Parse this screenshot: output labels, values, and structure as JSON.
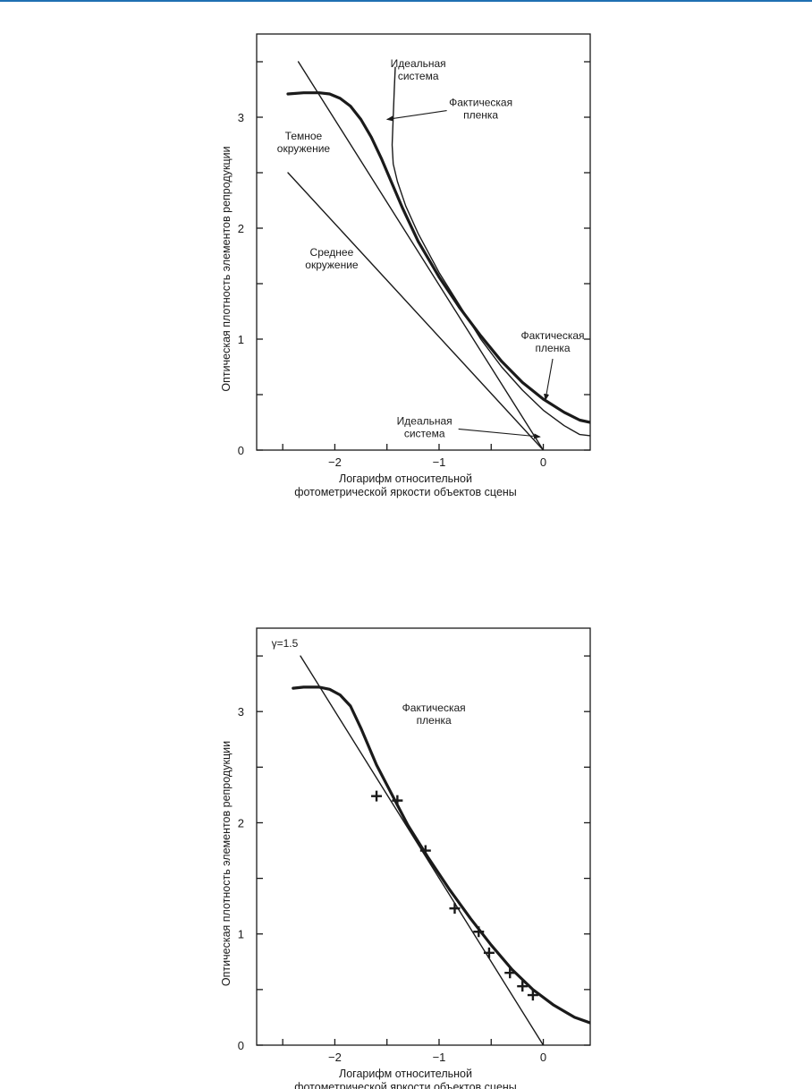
{
  "accent_color": "#1f6fb2",
  "chart_data": [
    {
      "type": "line",
      "xlabel": [
        "Логарифм относительной",
        "фотометрической яркости объектов сцены"
      ],
      "ylabel": "Оптическая плотность элементов репродукции",
      "xlim": [
        -2.75,
        0.45
      ],
      "ylim": [
        0,
        3.75
      ],
      "x_ticks": [
        -2.5,
        -2,
        -1.5,
        -1,
        -0.5,
        0
      ],
      "x_tick_labels": [
        "−2",
        "−1",
        "0"
      ],
      "x_tick_label_values": [
        -2,
        -1,
        0
      ],
      "y_ticks": [
        0,
        0.5,
        1,
        1.5,
        2,
        2.5,
        3,
        3.5
      ],
      "y_tick_labels": [
        "0",
        "1",
        "2",
        "3"
      ],
      "y_tick_label_values": [
        0,
        1,
        2,
        3
      ],
      "grid": false,
      "series": [
        {
          "name": "Фактическая пленка",
          "weight": "heavy",
          "x": [
            -2.45,
            -2.3,
            -2.15,
            -2.05,
            -1.95,
            -1.85,
            -1.75,
            -1.65,
            -1.55,
            -1.45,
            -1.35,
            -1.2,
            -1.0,
            -0.8,
            -0.6,
            -0.4,
            -0.2,
            0.0,
            0.2,
            0.35,
            0.45
          ],
          "y": [
            3.21,
            3.22,
            3.22,
            3.21,
            3.17,
            3.1,
            2.98,
            2.82,
            2.62,
            2.4,
            2.18,
            1.88,
            1.56,
            1.28,
            1.03,
            0.8,
            0.61,
            0.46,
            0.34,
            0.27,
            0.25
          ]
        },
        {
          "name": "Идеальная система",
          "weight": "thin",
          "x": [
            -1.42,
            -1.43,
            -1.44,
            -1.45,
            -1.44,
            -1.4,
            -1.32,
            -1.2,
            -1.0,
            -0.8,
            -0.6,
            -0.4,
            -0.2,
            0.0,
            0.2,
            0.35,
            0.45
          ],
          "y": [
            3.45,
            3.25,
            3.0,
            2.75,
            2.58,
            2.42,
            2.2,
            1.95,
            1.6,
            1.3,
            1.0,
            0.75,
            0.54,
            0.36,
            0.22,
            0.14,
            0.13
          ]
        },
        {
          "name": "Темное окружение",
          "weight": "thin",
          "x": [
            -2.35,
            0.0
          ],
          "y": [
            3.5,
            0.0
          ]
        },
        {
          "name": "Среднее окружение",
          "weight": "thin",
          "x": [
            -2.45,
            0.0
          ],
          "y": [
            2.5,
            0.0
          ]
        }
      ],
      "annotations": [
        {
          "lines": [
            "Идеальная",
            "система"
          ],
          "x": -1.2,
          "y": 3.45
        },
        {
          "lines": [
            "Фактическая",
            "пленка"
          ],
          "x": -0.6,
          "y": 3.1,
          "arrow_to": [
            -1.5,
            2.98
          ]
        },
        {
          "lines": [
            "Темное",
            "окружение"
          ],
          "x": -2.3,
          "y": 2.8
        },
        {
          "lines": [
            "Среднее",
            "окружение"
          ],
          "x": -2.03,
          "y": 1.75
        },
        {
          "lines": [
            "Фактическая",
            "пленка"
          ],
          "x": 0.09,
          "y": 1.0,
          "arrow_to": [
            0.02,
            0.45
          ]
        },
        {
          "lines": [
            "Идеальная",
            "система"
          ],
          "x": -1.14,
          "y": 0.23,
          "arrow_to": [
            -0.03,
            0.12
          ]
        }
      ]
    },
    {
      "type": "line",
      "xlabel": [
        "Логарифм относительной",
        "фотометрической яркости объектов сцены"
      ],
      "ylabel": "Оптическая плотность элементов репродукции",
      "xlim": [
        -2.75,
        0.45
      ],
      "ylim": [
        0,
        3.75
      ],
      "x_ticks": [
        -2.5,
        -2,
        -1.5,
        -1,
        -0.5,
        0
      ],
      "x_tick_labels": [
        "−2",
        "−1",
        "0"
      ],
      "x_tick_label_values": [
        -2,
        -1,
        0
      ],
      "y_ticks": [
        0,
        0.5,
        1,
        1.5,
        2,
        2.5,
        3,
        3.5
      ],
      "y_tick_labels": [
        "0",
        "1",
        "2",
        "3"
      ],
      "y_tick_label_values": [
        0,
        1,
        2,
        3
      ],
      "grid": false,
      "series": [
        {
          "name": "Фактическая пленка",
          "weight": "heavy",
          "x": [
            -2.4,
            -2.3,
            -2.15,
            -2.05,
            -1.95,
            -1.85,
            -1.75,
            -1.6,
            -1.45,
            -1.3,
            -1.1,
            -0.9,
            -0.7,
            -0.5,
            -0.3,
            -0.1,
            0.1,
            0.3,
            0.45
          ],
          "y": [
            3.21,
            3.22,
            3.22,
            3.2,
            3.15,
            3.05,
            2.85,
            2.52,
            2.25,
            1.98,
            1.68,
            1.4,
            1.14,
            0.9,
            0.68,
            0.5,
            0.36,
            0.25,
            0.2
          ]
        },
        {
          "name": "γ=1.5",
          "weight": "thin",
          "x": [
            -2.33,
            0.0
          ],
          "y": [
            3.5,
            0.0
          ]
        }
      ],
      "points": {
        "marker": "+",
        "x": [
          -1.6,
          -1.4,
          -1.13,
          -0.85,
          -0.62,
          -0.52,
          -0.32,
          -0.2,
          -0.1
        ],
        "y": [
          2.24,
          2.2,
          1.75,
          1.23,
          1.02,
          0.83,
          0.65,
          0.53,
          0.45
        ]
      },
      "annotations": [
        {
          "lines": [
            "γ=1.5"
          ],
          "x": -2.48,
          "y": 3.58
        },
        {
          "lines": [
            "Фактическая",
            "пленка"
          ],
          "x": -1.05,
          "y": 3.0
        }
      ]
    }
  ]
}
